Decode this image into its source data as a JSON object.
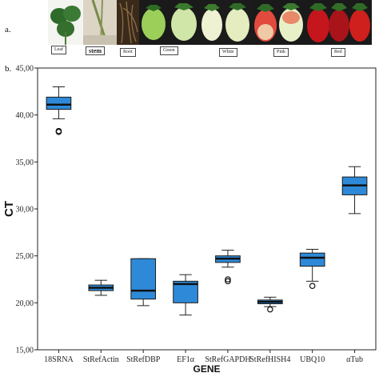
{
  "panels": {
    "a_label": "a.",
    "b_label": "b."
  },
  "photos": [
    {
      "id": "leaf",
      "caption": "Leaf"
    },
    {
      "id": "stem",
      "caption": "stem"
    },
    {
      "id": "root",
      "caption": "Root"
    },
    {
      "id": "green",
      "caption": "Green"
    },
    {
      "id": "white",
      "caption": "White"
    },
    {
      "id": "pink",
      "caption": "Pink"
    },
    {
      "id": "red",
      "caption": "Red"
    }
  ],
  "chart_data": {
    "type": "boxplot",
    "xlabel": "GENE",
    "ylabel": "CT",
    "ylim": [
      15,
      45
    ],
    "yticks": [
      "15,00",
      "20,00",
      "25,00",
      "30,00",
      "35,00",
      "40,00",
      "45,00"
    ],
    "categories": [
      "18SRNA",
      "StRefActin",
      "StRefDBP",
      "EF1α",
      "StRefGAPDH",
      "StRefHISH4",
      "UBQ10",
      "αTub"
    ],
    "boxes": [
      {
        "min": 39.6,
        "q1": 40.6,
        "median": 41.1,
        "q3": 41.9,
        "max": 43.0,
        "outliers": [
          38.2,
          38.3
        ]
      },
      {
        "min": 20.8,
        "q1": 21.3,
        "median": 21.6,
        "q3": 21.9,
        "max": 22.4,
        "outliers": []
      },
      {
        "min": 19.7,
        "q1": 20.4,
        "median": 21.3,
        "q3": 24.7,
        "max": 24.7,
        "outliers": []
      },
      {
        "min": 18.7,
        "q1": 20.0,
        "median": 22.0,
        "q3": 22.3,
        "max": 23.0,
        "outliers": []
      },
      {
        "min": 23.8,
        "q1": 24.3,
        "median": 24.7,
        "q3": 25.0,
        "max": 25.6,
        "outliers": [
          22.3,
          22.5
        ]
      },
      {
        "min": 19.6,
        "q1": 19.9,
        "median": 20.1,
        "q3": 20.3,
        "max": 20.6,
        "outliers": [
          19.3
        ]
      },
      {
        "min": 22.3,
        "q1": 23.9,
        "median": 24.8,
        "q3": 25.3,
        "max": 25.7,
        "outliers": [
          21.8
        ]
      },
      {
        "min": 29.5,
        "q1": 31.5,
        "median": 32.5,
        "q3": 33.4,
        "max": 34.5,
        "outliers": []
      }
    ],
    "box_color": "#2e8ad8",
    "grid": false
  }
}
